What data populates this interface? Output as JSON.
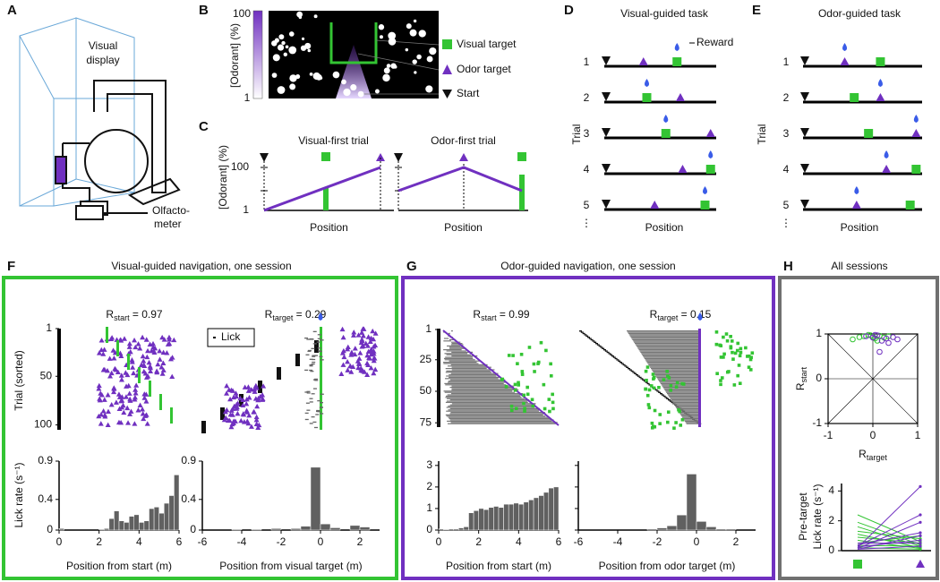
{
  "panels": {
    "A": {
      "letter": "A",
      "visual_display": [
        "Visual",
        "display"
      ],
      "olfactometer": [
        "Olfacto-",
        "meter"
      ]
    },
    "B": {
      "letter": "B",
      "colorbar_label": "[Odorant] (%)",
      "colorbar_max": "100",
      "colorbar_min": "1",
      "legend": [
        "Visual target",
        "Odor target",
        "Start"
      ]
    },
    "C": {
      "letter": "C",
      "ylabel": "[Odorant] (%)",
      "ytick_top": "100",
      "ytick_bottom": "1",
      "plots": [
        {
          "title": "Visual-first trial",
          "xlabel": "Position"
        },
        {
          "title": "Odor-first trial",
          "xlabel": "Position"
        }
      ]
    },
    "D": {
      "letter": "D",
      "title": "Visual-guided task",
      "reward": "Reward",
      "ylabel": "Trial",
      "trials": [
        "1",
        "2",
        "3",
        "4",
        "5"
      ],
      "more": "⋮",
      "xlabel": "Position"
    },
    "E": {
      "letter": "E",
      "title": "Odor-guided task",
      "ylabel": "Trial",
      "trials": [
        "1",
        "2",
        "3",
        "4",
        "5"
      ],
      "more": "⋮",
      "xlabel": "Position"
    },
    "F": {
      "letter": "F",
      "title": "Visual-guided navigation, one session",
      "legend": "Lick",
      "r_start": {
        "symbol": "R",
        "sub": "start",
        "text": " = 0.97"
      },
      "r_target": {
        "symbol": "R",
        "sub": "target",
        "text": " = 0.29"
      },
      "raster_ylabel": "Trial (sorted)",
      "raster_ylim": [
        1,
        105
      ],
      "raster_yticks": [
        1,
        50,
        100
      ],
      "hist_left": {
        "type": "histogram",
        "ylabel": "Lick rate (s⁻¹)",
        "xlabel": "Position from start (m)",
        "color": "#606060",
        "bins": [
          0,
          0.25,
          0.5,
          0.75,
          1,
          1.25,
          1.5,
          1.75,
          2,
          2.25,
          2.5,
          2.75,
          3,
          3.25,
          3.5,
          3.75,
          4,
          4.25,
          4.5,
          4.75,
          5,
          5.25,
          5.5,
          5.75,
          6
        ],
        "values": [
          0.02,
          0,
          0,
          0,
          0,
          0,
          0,
          0,
          0.01,
          0.02,
          0.15,
          0.25,
          0.12,
          0.1,
          0.18,
          0.2,
          0.1,
          0.12,
          0.28,
          0.3,
          0.22,
          0.35,
          0.45,
          0.72
        ],
        "xlim": [
          0,
          6
        ],
        "xticks": [
          0,
          2,
          4,
          6
        ],
        "ylim": [
          0,
          0.9
        ],
        "yticks": [
          0,
          0.4,
          0.9
        ]
      },
      "hist_right": {
        "type": "histogram",
        "xlabel": "Position from visual target (m)",
        "color": "#606060",
        "bins": [
          -6,
          -5.5,
          -5,
          -4.5,
          -4,
          -3.5,
          -3,
          -2.5,
          -2,
          -1.5,
          -1,
          -0.5,
          0,
          0.5,
          1,
          1.5,
          2,
          2.5,
          3
        ],
        "values": [
          0,
          0,
          0,
          0.01,
          0,
          0.01,
          0,
          0.02,
          0,
          0.02,
          0.05,
          0.82,
          0.08,
          0.03,
          0,
          0.06,
          0.04,
          0
        ],
        "xlim": [
          -6,
          3
        ],
        "xticks": [
          -6,
          -4,
          -2,
          0,
          2
        ],
        "ylim": [
          0,
          0.9
        ],
        "yticks": [
          0,
          0.4,
          0.9
        ]
      }
    },
    "G": {
      "letter": "G",
      "title": "Odor-guided navigation, one session",
      "r_start": {
        "symbol": "R",
        "sub": "start",
        "text": " = 0.99"
      },
      "r_target": {
        "symbol": "R",
        "sub": "target",
        "text": " = 0.15"
      },
      "raster_ylim": [
        1,
        77
      ],
      "raster_yticks": [
        1,
        25,
        50,
        75
      ],
      "hist_left": {
        "type": "histogram",
        "xlabel": "Position from start (m)",
        "color": "#606060",
        "bins": [
          0,
          0.25,
          0.5,
          0.75,
          1,
          1.25,
          1.5,
          1.75,
          2,
          2.25,
          2.5,
          2.75,
          3,
          3.25,
          3.5,
          3.75,
          4,
          4.25,
          4.5,
          4.75,
          5,
          5.25,
          5.5,
          5.75,
          6
        ],
        "values": [
          0.05,
          0.02,
          0.05,
          0.05,
          0.1,
          0.15,
          0.8,
          0.9,
          1.0,
          0.95,
          1.05,
          1.1,
          1.05,
          1.2,
          1.2,
          1.25,
          1.2,
          1.3,
          1.4,
          1.5,
          1.6,
          1.75,
          1.95,
          2.0
        ],
        "xlim": [
          0,
          6
        ],
        "xticks": [
          0,
          2,
          4,
          6
        ],
        "ylim": [
          0,
          3.2
        ],
        "yticks": [
          0,
          1,
          2,
          3
        ]
      },
      "hist_right": {
        "type": "histogram",
        "xlabel": "Position from odor target (m)",
        "color": "#606060",
        "bins": [
          -6,
          -5.5,
          -5,
          -4.5,
          -4,
          -3.5,
          -3,
          -2.5,
          -2,
          -1.5,
          -1,
          -0.5,
          0,
          0.5,
          1,
          1.5,
          2,
          2.5,
          3
        ],
        "values": [
          0,
          0,
          0,
          0,
          0,
          0,
          0,
          0.05,
          0.1,
          0.2,
          0.7,
          2.6,
          0.4,
          0.15,
          0.05,
          0.05,
          0,
          0
        ],
        "xlim": [
          -6,
          3
        ],
        "xticks": [
          -6,
          -4,
          -2,
          0,
          2
        ],
        "ylim": [
          0,
          3.2
        ],
        "yticks": [
          0,
          1,
          2,
          3
        ]
      }
    },
    "H": {
      "letter": "H",
      "title": "All sessions",
      "scatter": {
        "type": "scatter",
        "xlabel": {
          "symbol": "R",
          "sub": "target"
        },
        "ylabel": {
          "symbol": "R",
          "sub": "start"
        },
        "xlim": [
          -1.1,
          1.1
        ],
        "ylim": [
          -1.1,
          1.1
        ],
        "xticks": [
          -1,
          0,
          1
        ],
        "yticks": [
          -1,
          0,
          1
        ],
        "groups": [
          {
            "color": "#33c433",
            "x": [
              -0.45,
              -0.3,
              -0.2,
              -0.05,
              0.05,
              0.15,
              0.25,
              0.1,
              -0.1,
              0.35,
              0.0
            ],
            "y": [
              0.88,
              0.93,
              0.95,
              0.97,
              0.9,
              0.96,
              0.92,
              0.85,
              0.98,
              0.95,
              0.94
            ]
          },
          {
            "color": "#7030c0",
            "x": [
              -0.15,
              0.0,
              0.1,
              0.2,
              0.3,
              0.45,
              0.55,
              0.15,
              0.05,
              0.35
            ],
            "y": [
              0.95,
              0.92,
              0.97,
              0.85,
              0.9,
              0.93,
              0.88,
              0.6,
              0.98,
              0.8
            ]
          }
        ]
      },
      "pairs": {
        "type": "line",
        "ylabel": [
          "Pre-target",
          "Lick rate (s⁻¹)"
        ],
        "ylim": [
          0,
          4.5
        ],
        "yticks": [
          0,
          2,
          4
        ],
        "lines": [
          {
            "color": "#33c433",
            "values": [
              2.4,
              0.6
            ]
          },
          {
            "color": "#33c433",
            "values": [
              1.9,
              0.4
            ]
          },
          {
            "color": "#33c433",
            "values": [
              1.6,
              0.3
            ]
          },
          {
            "color": "#33c433",
            "values": [
              1.3,
              0.8
            ]
          },
          {
            "color": "#33c433",
            "values": [
              1.1,
              0.2
            ]
          },
          {
            "color": "#33c433",
            "values": [
              0.9,
              0.5
            ]
          },
          {
            "color": "#33c433",
            "values": [
              0.7,
              0.15
            ]
          },
          {
            "color": "#33c433",
            "values": [
              0.5,
              1.0
            ]
          },
          {
            "color": "#33c433",
            "values": [
              0.35,
              0.3
            ]
          },
          {
            "color": "#33c433",
            "values": [
              0.2,
              0.1
            ]
          },
          {
            "color": "#7030c0",
            "values": [
              0.2,
              4.3
            ]
          },
          {
            "color": "#7030c0",
            "values": [
              0.3,
              2.4
            ]
          },
          {
            "color": "#7030c0",
            "values": [
              0.15,
              1.9
            ]
          },
          {
            "color": "#7030c0",
            "values": [
              0.4,
              1.2
            ]
          },
          {
            "color": "#7030c0",
            "values": [
              0.1,
              1.0
            ]
          },
          {
            "color": "#7030c0",
            "values": [
              0.25,
              0.7
            ]
          },
          {
            "color": "#7030c0",
            "values": [
              0.5,
              0.5
            ]
          },
          {
            "color": "#7030c0",
            "values": [
              0.1,
              0.3
            ]
          }
        ]
      }
    }
  }
}
